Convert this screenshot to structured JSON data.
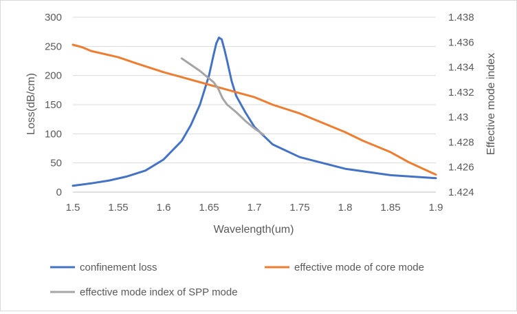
{
  "chart_data": {
    "type": "line",
    "title": "",
    "xlabel": "Wavelength(um)",
    "ylabel": "Loss(dB/cm)",
    "y2label": "Effective mode index",
    "xlim": [
      1.5,
      1.9
    ],
    "ylim": [
      0,
      300
    ],
    "y2lim": [
      1.424,
      1.438
    ],
    "grid": "horizontal",
    "legend_position": "bottom",
    "x_ticks": [
      "1.5",
      "1.55",
      "1.6",
      "1.65",
      "1.7",
      "1.75",
      "1.8",
      "1.85",
      "1.9"
    ],
    "y_ticks": [
      "0",
      "50",
      "100",
      "150",
      "200",
      "250",
      "300"
    ],
    "y2_ticks": [
      "1.424",
      "1.426",
      "1.428",
      "1.43",
      "1.432",
      "1.434",
      "1.436",
      "1.438"
    ],
    "series": [
      {
        "name": "confinement loss",
        "axis": "left",
        "color": "#4472c4",
        "x": [
          1.5,
          1.52,
          1.54,
          1.56,
          1.58,
          1.6,
          1.62,
          1.63,
          1.64,
          1.65,
          1.655,
          1.658,
          1.661,
          1.664,
          1.667,
          1.67,
          1.675,
          1.68,
          1.69,
          1.7,
          1.72,
          1.75,
          1.8,
          1.85,
          1.9
        ],
        "values": [
          11,
          15,
          20,
          27,
          37,
          56,
          88,
          115,
          150,
          200,
          235,
          255,
          265,
          262,
          245,
          225,
          190,
          165,
          137,
          112,
          82,
          60,
          40,
          29,
          24
        ]
      },
      {
        "name": "effective mode of core mode",
        "axis": "right",
        "color": "#ed7d31",
        "x": [
          1.5,
          1.51,
          1.52,
          1.55,
          1.57,
          1.6,
          1.62,
          1.65,
          1.68,
          1.7,
          1.72,
          1.75,
          1.77,
          1.8,
          1.82,
          1.85,
          1.87,
          1.9
        ],
        "values": [
          1.4358,
          1.4356,
          1.4353,
          1.4348,
          1.4343,
          1.4336,
          1.4332,
          1.4326,
          1.432,
          1.4316,
          1.431,
          1.4303,
          1.4297,
          1.4288,
          1.4281,
          1.4272,
          1.4264,
          1.4254
        ]
      },
      {
        "name": "effective mode index of SPP mode",
        "axis": "right",
        "color": "#a5a5a5",
        "x": [
          1.62,
          1.64,
          1.655,
          1.66,
          1.665,
          1.67,
          1.68,
          1.69,
          1.7,
          1.71
        ],
        "values": [
          1.4347,
          1.4337,
          1.4328,
          1.4323,
          1.4315,
          1.431,
          1.4304,
          1.4297,
          1.4291,
          1.4286
        ]
      }
    ]
  }
}
